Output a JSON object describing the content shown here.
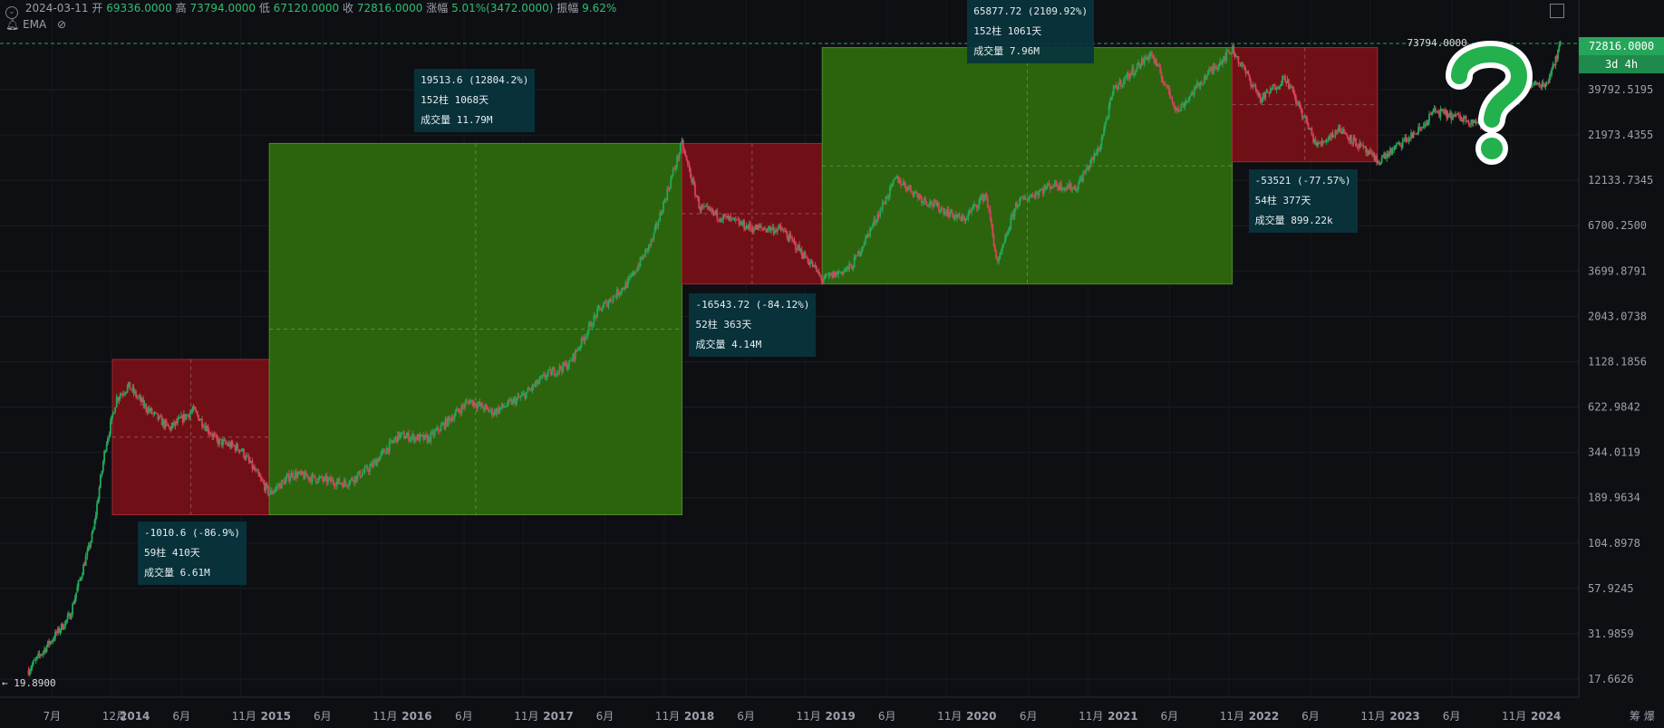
{
  "legend": {
    "date": "2024-03-11",
    "open_label": "开",
    "open": "69336.0000",
    "high_label": "高",
    "high": "73794.0000",
    "low_label": "低",
    "low": "67120.0000",
    "close_label": "收",
    "close": "72816.0000",
    "change_label": "涨幅",
    "change": "5.01%(3472.0000)",
    "amp_label": "振幅",
    "amp": "9.62%"
  },
  "indicator": {
    "name": "EMA"
  },
  "timeframe": "3d 4h",
  "last_price": "72816.0000",
  "high_marker": "73794.0000",
  "low_marker": "19.8900",
  "bottom_right": "筹 爆",
  "colors": {
    "background": "#0e0f13",
    "up": "#26a65b",
    "down": "#d3455b",
    "bull_box": "#2e6b0c",
    "bear_box": "#7a0f18",
    "price_tag": "#26a65b",
    "question_mark": "#22b14c"
  },
  "chart_data": {
    "type": "candlestick",
    "scale": "log",
    "y_ticks": [
      "39792.5195",
      "21973.4355",
      "12133.7345",
      "6700.2500",
      "3699.8791",
      "2043.0738",
      "1128.1856",
      "622.9842",
      "344.0119",
      "189.9634",
      "104.8978",
      "57.9245",
      "31.9859",
      "17.6626"
    ],
    "x_ticks": [
      "7月",
      "12月",
      "2014",
      "6月",
      "11月",
      "2015",
      "6月",
      "11月",
      "2016",
      "6月",
      "11月",
      "2017",
      "6月",
      "11月",
      "2018",
      "6月",
      "11月",
      "2019",
      "6月",
      "11月",
      "2020",
      "6月",
      "11月",
      "2021",
      "6月",
      "11月",
      "2022",
      "6月",
      "11月",
      "2023",
      "6月",
      "11月",
      "2024"
    ],
    "price_path": [
      [
        "2013-05-01",
        19.89
      ],
      [
        "2013-08-15",
        40
      ],
      [
        "2013-10-15",
        120
      ],
      [
        "2013-11-15",
        360
      ],
      [
        "2013-12-15",
        700
      ],
      [
        "2014-01-15",
        820
      ],
      [
        "2014-03-01",
        620
      ],
      [
        "2014-05-01",
        470
      ],
      [
        "2014-07-01",
        600
      ],
      [
        "2014-09-01",
        400
      ],
      [
        "2014-11-01",
        360
      ],
      [
        "2015-01-15",
        200
      ],
      [
        "2015-03-15",
        260
      ],
      [
        "2015-06-01",
        240
      ],
      [
        "2015-08-01",
        230
      ],
      [
        "2015-10-01",
        280
      ],
      [
        "2015-12-15",
        430
      ],
      [
        "2016-03-01",
        410
      ],
      [
        "2016-06-15",
        680
      ],
      [
        "2016-08-15",
        580
      ],
      [
        "2016-11-01",
        720
      ],
      [
        "2017-01-01",
        950
      ],
      [
        "2017-03-01",
        1100
      ],
      [
        "2017-05-15",
        2200
      ],
      [
        "2017-08-01",
        3200
      ],
      [
        "2017-10-01",
        5500
      ],
      [
        "2017-12-17",
        19500
      ],
      [
        "2018-02-01",
        8500
      ],
      [
        "2018-04-01",
        7500
      ],
      [
        "2018-06-15",
        6500
      ],
      [
        "2018-09-01",
        6400
      ],
      [
        "2018-11-20",
        4000
      ],
      [
        "2018-12-15",
        3300
      ],
      [
        "2019-03-01",
        3900
      ],
      [
        "2019-06-25",
        12500
      ],
      [
        "2019-09-01",
        9500
      ],
      [
        "2019-12-15",
        7200
      ],
      [
        "2020-02-12",
        10200
      ],
      [
        "2020-03-13",
        4000
      ],
      [
        "2020-05-01",
        9000
      ],
      [
        "2020-08-01",
        11500
      ],
      [
        "2020-10-01",
        11000
      ],
      [
        "2020-12-01",
        18500
      ],
      [
        "2021-01-08",
        40000
      ],
      [
        "2021-04-14",
        64000
      ],
      [
        "2021-06-22",
        30000
      ],
      [
        "2021-09-01",
        47000
      ],
      [
        "2021-11-10",
        68000
      ],
      [
        "2022-01-24",
        35000
      ],
      [
        "2022-03-28",
        47000
      ],
      [
        "2022-06-18",
        19000
      ],
      [
        "2022-08-15",
        24000
      ],
      [
        "2022-11-21",
        15500
      ],
      [
        "2023-03-15",
        24000
      ],
      [
        "2023-04-15",
        30000
      ],
      [
        "2023-09-11",
        25000
      ],
      [
        "2023-12-15",
        42000
      ],
      [
        "2024-02-01",
        43000
      ],
      [
        "2024-03-11",
        73794
      ]
    ],
    "measure_boxes": [
      {
        "kind": "bear",
        "from": "2013-12-04",
        "to": "2015-01-14",
        "top": 1163,
        "bottom": 152,
        "stats": [
          "-1010.6 (-86.9%)",
          "59柱 410天",
          "成交量 6.61M"
        ]
      },
      {
        "kind": "bull",
        "from": "2015-01-14",
        "to": "2017-12-17",
        "top": 19666,
        "bottom": 152,
        "stats": [
          "19513.6 (12804.2%)",
          "152柱 1068天",
          "成交量 11.79M"
        ]
      },
      {
        "kind": "bear",
        "from": "2017-12-17",
        "to": "2018-12-15",
        "top": 19666,
        "bottom": 3122,
        "stats": [
          "-16543.72 (-84.12%)",
          "52柱 363天",
          "成交量 4.14M"
        ]
      },
      {
        "kind": "bull",
        "from": "2018-12-15",
        "to": "2021-11-10",
        "top": 69000,
        "bottom": 3122,
        "stats": [
          "65877.72 (2109.92%)",
          "152柱 1061天",
          "成交量 7.96M"
        ]
      },
      {
        "kind": "bear",
        "from": "2021-11-10",
        "to": "2022-11-21",
        "top": 69000,
        "bottom": 15476,
        "stats": [
          "-53521 (-77.57%)",
          "54柱 377天",
          "成交量 899.22k"
        ]
      }
    ]
  }
}
